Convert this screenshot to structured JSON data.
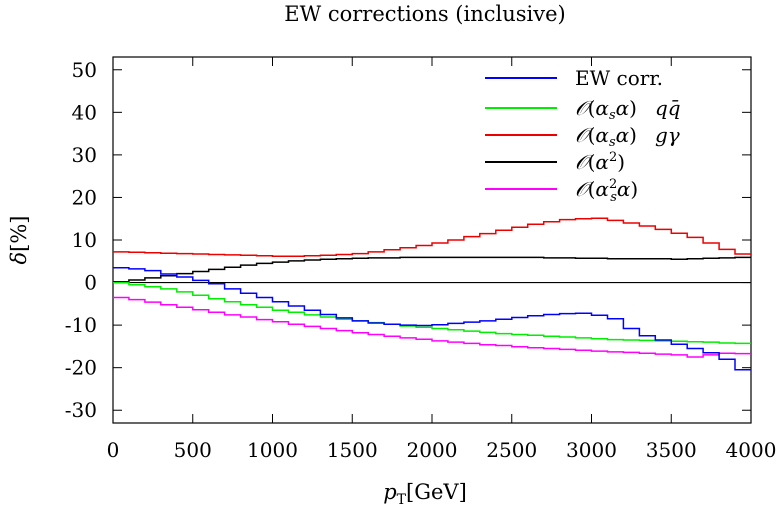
{
  "chart_data": {
    "type": "line",
    "step": true,
    "title": "EW corrections (inclusive)",
    "xlabel": "p_T[GeV]",
    "ylabel": "δ[%]",
    "xlim": [
      0,
      4000
    ],
    "ylim": [
      -33,
      53
    ],
    "xticks": [
      0,
      500,
      1000,
      1500,
      2000,
      2500,
      3000,
      3500,
      4000
    ],
    "yticks": [
      -30,
      -20,
      -10,
      0,
      10,
      20,
      30,
      40,
      50
    ],
    "xtick_labels": [
      "0",
      "500",
      "1000",
      "1500",
      "2000",
      "2500",
      "3000",
      "3500",
      "4000"
    ],
    "ytick_labels": [
      "-30",
      "-20",
      "-10",
      "0",
      "10",
      "20",
      "30",
      "40",
      "50"
    ],
    "legend_position": "top-right",
    "bin_edges": [
      0,
      100,
      200,
      300,
      400,
      500,
      600,
      700,
      800,
      900,
      1000,
      1100,
      1200,
      1300,
      1400,
      1500,
      1600,
      1700,
      1800,
      1900,
      2000,
      2100,
      2200,
      2300,
      2400,
      2500,
      2600,
      2700,
      2800,
      2900,
      3000,
      3100,
      3200,
      3300,
      3400,
      3500,
      3600,
      3700,
      3800,
      3900,
      4000
    ],
    "series": [
      {
        "name": "EW corr.",
        "color": "#0000ff",
        "values": [
          3.5,
          3.2,
          2.8,
          2.0,
          1.3,
          0.5,
          -0.3,
          -1.5,
          -2.5,
          -3.5,
          -4.5,
          -5.5,
          -6.5,
          -7.5,
          -8.3,
          -9.0,
          -9.5,
          -9.8,
          -10.0,
          -10.1,
          -9.9,
          -9.6,
          -9.3,
          -9.0,
          -8.6,
          -8.2,
          -7.8,
          -7.5,
          -7.3,
          -7.2,
          -7.7,
          -8.5,
          -10.8,
          -12.5,
          -13.5,
          -14.5,
          -15.5,
          -16.5,
          -18.0,
          -20.5
        ]
      },
      {
        "name": "O(α_s α) q q̄",
        "color": "#00ee00",
        "values": [
          0,
          -0.5,
          -1.0,
          -1.5,
          -2.2,
          -3.0,
          -3.8,
          -4.5,
          -5.2,
          -5.8,
          -6.5,
          -7.0,
          -7.6,
          -8.1,
          -8.6,
          -9.0,
          -9.4,
          -9.8,
          -10.2,
          -10.5,
          -10.8,
          -11.1,
          -11.4,
          -11.7,
          -12.0,
          -12.2,
          -12.4,
          -12.6,
          -12.8,
          -13.0,
          -13.2,
          -13.4,
          -13.5,
          -13.6,
          -13.7,
          -13.8,
          -13.9,
          -14.0,
          -14.2,
          -14.3
        ]
      },
      {
        "name": "O(α_s α) g γ",
        "color": "#ee0000",
        "values": [
          7.2,
          7.1,
          7.0,
          6.9,
          6.8,
          6.7,
          6.6,
          6.5,
          6.4,
          6.3,
          6.2,
          6.2,
          6.3,
          6.4,
          6.6,
          6.8,
          7.2,
          7.7,
          8.2,
          8.7,
          9.3,
          10.0,
          10.8,
          11.5,
          12.3,
          13.0,
          13.7,
          14.3,
          14.8,
          15.0,
          15.1,
          14.6,
          14.0,
          13.3,
          12.5,
          11.6,
          10.6,
          9.3,
          7.8,
          6.7
        ]
      },
      {
        "name": "O(α²)",
        "color": "#000000",
        "values": [
          0.2,
          0.6,
          1.1,
          1.6,
          2.1,
          2.6,
          3.1,
          3.6,
          4.1,
          4.5,
          4.8,
          5.1,
          5.3,
          5.5,
          5.6,
          5.7,
          5.8,
          5.8,
          5.9,
          5.9,
          5.9,
          5.9,
          5.9,
          5.9,
          5.9,
          5.9,
          5.9,
          5.8,
          5.8,
          5.7,
          5.7,
          5.6,
          5.6,
          5.6,
          5.6,
          5.5,
          5.6,
          5.7,
          5.8,
          5.9
        ]
      },
      {
        "name": "O(α_s² α)",
        "color": "#ff00ff",
        "values": [
          -3.5,
          -4.0,
          -4.6,
          -5.2,
          -5.8,
          -6.4,
          -7.0,
          -7.6,
          -8.1,
          -8.7,
          -9.2,
          -9.8,
          -10.3,
          -10.8,
          -11.3,
          -11.8,
          -12.2,
          -12.6,
          -13.0,
          -13.3,
          -13.7,
          -14.0,
          -14.3,
          -14.6,
          -14.8,
          -15.1,
          -15.3,
          -15.5,
          -15.7,
          -15.9,
          -16.1,
          -16.3,
          -16.4,
          -16.6,
          -16.8,
          -17.0,
          -17.5,
          -17.0,
          -16.6,
          -16.7
        ]
      }
    ]
  }
}
